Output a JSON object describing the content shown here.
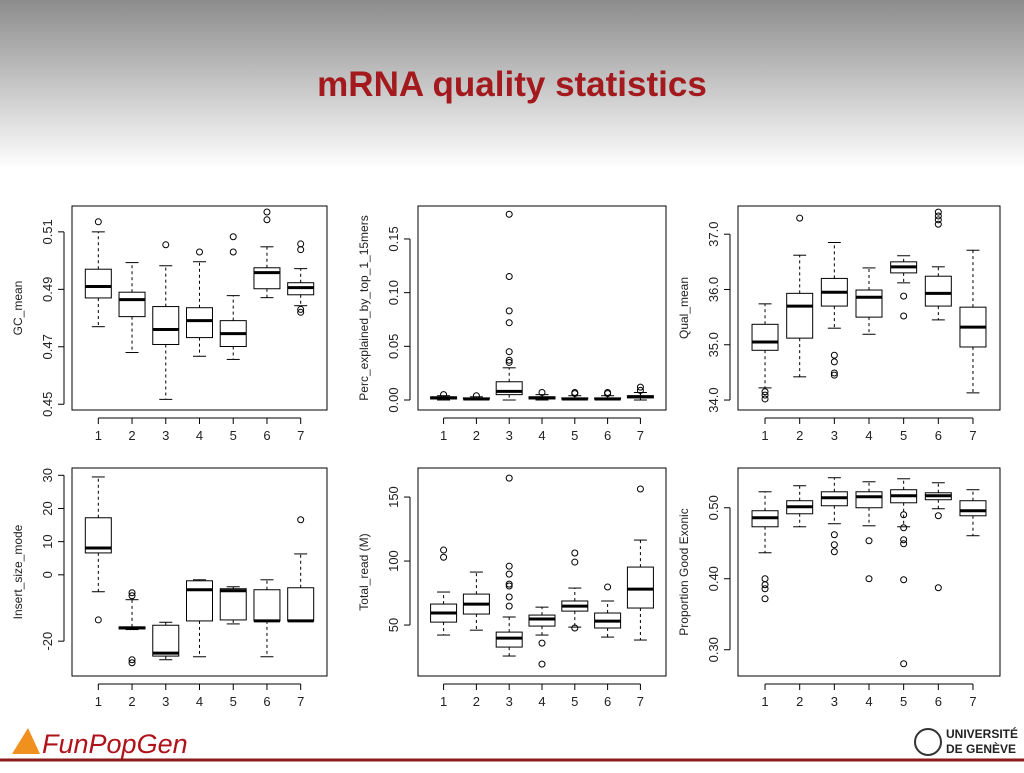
{
  "slide": {
    "title": "mRNA quality statistics",
    "footer": {
      "left": "FunPopGen",
      "right_line1": "UNIVERSITÉ",
      "right_line2": "DE GENÈVE"
    }
  },
  "chart_data": [
    {
      "type": "box",
      "ylabel": "GC_mean",
      "categories": [
        "1",
        "2",
        "3",
        "4",
        "5",
        "6",
        "7"
      ],
      "color": "#000000",
      "ylim": [
        0.448,
        0.519
      ],
      "yticks": [
        0.45,
        0.47,
        0.49,
        0.51
      ],
      "boxes": [
        {
          "low": 0.477,
          "q1": 0.487,
          "median": 0.491,
          "q3": 0.497,
          "high": 0.51,
          "outliers": [
            0.5135
          ]
        },
        {
          "low": 0.468,
          "q1": 0.4805,
          "median": 0.4864,
          "q3": 0.489,
          "high": 0.4993,
          "outliers": []
        },
        {
          "low": 0.4517,
          "q1": 0.4708,
          "median": 0.476,
          "q3": 0.484,
          "high": 0.4982,
          "outliers": [
            0.5055
          ]
        },
        {
          "low": 0.4667,
          "q1": 0.4732,
          "median": 0.4791,
          "q3": 0.4836,
          "high": 0.4996,
          "outliers": [
            0.503
          ]
        },
        {
          "low": 0.4656,
          "q1": 0.4701,
          "median": 0.4746,
          "q3": 0.4791,
          "high": 0.4878,
          "outliers": [
            0.503,
            0.5083
          ]
        },
        {
          "low": 0.4871,
          "q1": 0.4902,
          "median": 0.4958,
          "q3": 0.4975,
          "high": 0.5048,
          "outliers": [
            0.5142,
            0.5169
          ]
        },
        {
          "low": 0.4843,
          "q1": 0.4881,
          "median": 0.4906,
          "q3": 0.4923,
          "high": 0.4972,
          "outliers": [
            0.5038,
            0.5058,
            0.483,
            0.482
          ]
        }
      ]
    },
    {
      "type": "box",
      "ylabel": "Perc_explained_by_top_1_15mers",
      "categories": [
        "1",
        "2",
        "3",
        "4",
        "5",
        "6",
        "7"
      ],
      "color": "#000000",
      "ylim": [
        -0.0093,
        0.1807
      ],
      "yticks": [
        {
          "value": 0,
          "label": "0.00"
        },
        0.05,
        {
          "value": 0.1,
          "label": "0.10"
        },
        0.15
      ],
      "boxes": [
        {
          "low": 0,
          "q1": 0.001,
          "median": 0.002,
          "q3": 0.003,
          "high": 0.004,
          "outliers": [
            0.005
          ]
        },
        {
          "low": 0,
          "q1": 0.001,
          "median": 0.001,
          "q3": 0.002,
          "high": 0.003,
          "outliers": [
            0.004
          ]
        },
        {
          "low": 0,
          "q1": 0.005,
          "median": 0.008,
          "q3": 0.017,
          "high": 0.03,
          "outliers": [
            0.035,
            0.037,
            0.045,
            0.072,
            0.083,
            0.115,
            0.173
          ]
        },
        {
          "low": 0,
          "q1": 0.001,
          "median": 0.002,
          "q3": 0.003,
          "high": 0.005,
          "outliers": [
            0.007
          ]
        },
        {
          "low": 0,
          "q1": 0.001,
          "median": 0.001,
          "q3": 0.002,
          "high": 0.004,
          "outliers": [
            0.006,
            0.007
          ]
        },
        {
          "low": 0,
          "q1": 0.001,
          "median": 0.001,
          "q3": 0.002,
          "high": 0.004,
          "outliers": [
            0.006,
            0.007
          ]
        },
        {
          "low": 0,
          "q1": 0.002,
          "median": 0.003,
          "q3": 0.004,
          "high": 0.007,
          "outliers": [
            0.009,
            0.012
          ]
        }
      ]
    },
    {
      "type": "box",
      "ylabel": "Qual_mean",
      "categories": [
        "1",
        "2",
        "3",
        "4",
        "5",
        "6",
        "7"
      ],
      "color": "#000000",
      "ylim": [
        33.82,
        37.51
      ],
      "yticks": [
        {
          "value": 34,
          "label": "34.0"
        },
        {
          "value": 35,
          "label": "35.0"
        },
        {
          "value": 36,
          "label": "36.0"
        },
        {
          "value": 37,
          "label": "37.0"
        }
      ],
      "boxes": [
        {
          "low": 34.22,
          "q1": 34.9,
          "median": 35.05,
          "q3": 35.37,
          "high": 35.74,
          "outliers": [
            34.15,
            34.09,
            34.02
          ]
        },
        {
          "low": 34.42,
          "q1": 35.12,
          "median": 35.7,
          "q3": 35.93,
          "high": 36.62,
          "outliers": [
            37.29
          ]
        },
        {
          "low": 35.3,
          "q1": 35.7,
          "median": 35.95,
          "q3": 36.2,
          "high": 36.85,
          "outliers": [
            34.81,
            34.69,
            34.49,
            34.45
          ]
        },
        {
          "low": 35.19,
          "q1": 35.5,
          "median": 35.86,
          "q3": 35.99,
          "high": 36.39,
          "outliers": []
        },
        {
          "low": 36.12,
          "q1": 36.3,
          "median": 36.41,
          "q3": 36.5,
          "high": 36.61,
          "outliers": [
            35.88,
            35.52
          ]
        },
        {
          "low": 35.45,
          "q1": 35.7,
          "median": 35.93,
          "q3": 36.24,
          "high": 36.41,
          "outliers": [
            37.4,
            37.33,
            37.26,
            37.18
          ]
        },
        {
          "low": 34.13,
          "q1": 34.96,
          "median": 35.32,
          "q3": 35.68,
          "high": 36.71,
          "outliers": []
        }
      ]
    },
    {
      "type": "box",
      "ylabel": "Insert_size_mode",
      "categories": [
        "1",
        "2",
        "3",
        "4",
        "5",
        "6",
        "7"
      ],
      "color": "#000000",
      "ylim": [
        -30.5,
        32.2
      ],
      "yticks": [
        -20,
        0,
        10,
        20,
        30
      ],
      "boxes": [
        {
          "low": -5.1,
          "q1": 6.6,
          "median": 8.1,
          "q3": 17.2,
          "high": 29.5,
          "outliers": [
            -13.6
          ]
        },
        {
          "low": -16.5,
          "q1": -16.3,
          "median": -16,
          "q3": -15.7,
          "high": -7.5,
          "outliers": [
            -5.4,
            -6.3,
            -25.6,
            -26.5
          ]
        },
        {
          "low": -25.6,
          "q1": -24.5,
          "median": -23.6,
          "q3": -15.2,
          "high": -14.3,
          "outliers": []
        },
        {
          "low": -24.7,
          "q1": -13.9,
          "median": -4.5,
          "q3": -1.8,
          "high": -1.5,
          "outliers": []
        },
        {
          "low": -14.8,
          "q1": -13.6,
          "median": -4.8,
          "q3": -4.2,
          "high": -3.6,
          "outliers": []
        },
        {
          "low": -24.7,
          "q1": -13.9,
          "median": -13.9,
          "q3": -4.5,
          "high": -1.5,
          "outliers": []
        },
        {
          "low": -13.9,
          "q1": -13.9,
          "median": -13.9,
          "q3": -3.9,
          "high": 6.3,
          "outliers": [
            16.6
          ]
        }
      ]
    },
    {
      "type": "box",
      "ylabel": "Total_read (M)",
      "categories": [
        "1",
        "2",
        "3",
        "4",
        "5",
        "6",
        "7"
      ],
      "color": "#000000",
      "ylim": [
        10.2,
        172.7
      ],
      "yticks": [
        50,
        100,
        150
      ],
      "boxes": [
        {
          "low": 42.2,
          "q1": 52.3,
          "median": 59.4,
          "q3": 66.4,
          "high": 75.8,
          "outliers": [
            103,
            108.6
          ]
        },
        {
          "low": 46,
          "q1": 58.6,
          "median": 66.4,
          "q3": 74.2,
          "high": 91.4,
          "outliers": []
        },
        {
          "low": 25.8,
          "q1": 32.8,
          "median": 39.8,
          "q3": 44.5,
          "high": 56.3,
          "outliers": [
            64.8,
            71.9,
            80.5,
            82,
            89.8,
            96,
            164.8
          ]
        },
        {
          "low": 42.2,
          "q1": 49.2,
          "median": 54.7,
          "q3": 57.8,
          "high": 64,
          "outliers": [
            35.9,
            19.5
          ]
        },
        {
          "low": 48.4,
          "q1": 60.9,
          "median": 64.8,
          "q3": 68.8,
          "high": 78.9,
          "outliers": [
            99.2,
            106.3,
            47.7
          ]
        },
        {
          "low": 40.6,
          "q1": 47.7,
          "median": 53.1,
          "q3": 59.4,
          "high": 68.8,
          "outliers": [
            79.7
          ]
        },
        {
          "low": 38.3,
          "q1": 63.3,
          "median": 78.1,
          "q3": 95.3,
          "high": 116.4,
          "outliers": [
            156.3
          ]
        }
      ]
    },
    {
      "type": "box",
      "ylabel": "Proportion Good Exonic",
      "categories": [
        "1",
        "2",
        "3",
        "4",
        "5",
        "6",
        "7"
      ],
      "color": "#000000",
      "ylim": [
        0.263,
        0.556
      ],
      "yticks": [
        {
          "value": 0.3,
          "label": "0.30"
        },
        {
          "value": 0.4,
          "label": "0.40"
        },
        {
          "value": 0.5,
          "label": "0.50"
        }
      ],
      "boxes": [
        {
          "low": 0.4366,
          "q1": 0.4732,
          "median": 0.4859,
          "q3": 0.4958,
          "high": 0.5225,
          "outliers": [
            0.4,
            0.3915,
            0.3859,
            0.3718
          ]
        },
        {
          "low": 0.4732,
          "q1": 0.4915,
          "median": 0.5014,
          "q3": 0.5099,
          "high": 0.531,
          "outliers": []
        },
        {
          "low": 0.4775,
          "q1": 0.5028,
          "median": 0.5141,
          "q3": 0.5225,
          "high": 0.5423,
          "outliers": [
            0.462,
            0.4479,
            0.438
          ]
        },
        {
          "low": 0.4746,
          "q1": 0.5,
          "median": 0.5155,
          "q3": 0.5225,
          "high": 0.5366,
          "outliers": [
            0.4535,
            0.4
          ]
        },
        {
          "low": 0.4732,
          "q1": 0.507,
          "median": 0.5169,
          "q3": 0.5254,
          "high": 0.5408,
          "outliers": [
            0.4901,
            0.4718,
            0.4549,
            0.4493,
            0.3986,
            0.2803
          ]
        },
        {
          "low": 0.4986,
          "q1": 0.5113,
          "median": 0.5169,
          "q3": 0.5211,
          "high": 0.5352,
          "outliers": [
            0.4887,
            0.3873
          ]
        },
        {
          "low": 0.4606,
          "q1": 0.4887,
          "median": 0.4958,
          "q3": 0.5099,
          "high": 0.5254,
          "outliers": []
        }
      ]
    }
  ]
}
